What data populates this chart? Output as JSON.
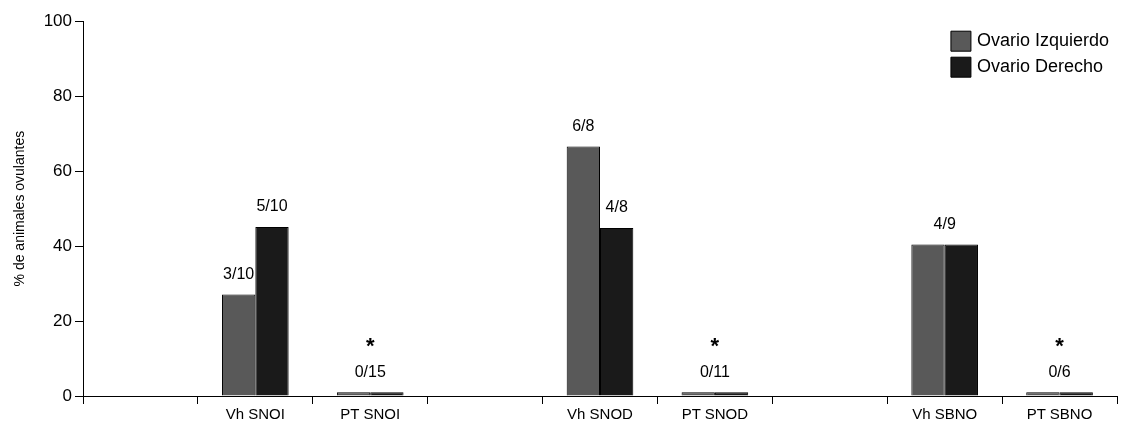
{
  "chart_data": {
    "type": "bar",
    "ylabel": "% de animales ovulantes",
    "categories": [
      null,
      "Vh SNOI",
      "PT SNOI",
      null,
      "Vh SNOD",
      "PT SNOD",
      null,
      "Vh SBNO",
      "PT SBNO"
    ],
    "series": [
      {
        "name": "Ovario Izquierdo",
        "color": "#595959",
        "values": [
          null,
          27.1,
          1,
          null,
          66.6,
          1,
          null,
          40.4,
          1
        ]
      },
      {
        "name": "Ovario Derecho",
        "color": "#1a1a1a",
        "values": [
          null,
          45.1,
          1,
          null,
          44.8,
          1,
          null,
          40.4,
          1
        ]
      }
    ],
    "annotations": [
      {
        "text": "3/10",
        "x": "Vh SNOI",
        "y": 27.1
      },
      {
        "text": "5/10",
        "x": "Vh SNOI",
        "y": 45.1
      },
      {
        "text": "0/15",
        "x": "PT SNOI",
        "y": 1
      },
      {
        "text": "*",
        "x": "PT SNOI",
        "y": 1
      },
      {
        "text": "6/8",
        "x": "Vh SNOD",
        "y": 66.6
      },
      {
        "text": "4/8",
        "x": "Vh SNOD",
        "y": 44.8
      },
      {
        "text": "0/11",
        "x": "PT SNOD",
        "y": 1
      },
      {
        "text": "*",
        "x": "PT SNOD",
        "y": 1
      },
      {
        "text": "4/9",
        "x": "Vh SBNO",
        "y": 40.4
      },
      {
        "text": "0/6",
        "x": "PT SBNO",
        "y": 1
      },
      {
        "text": "*",
        "x": "PT SBNO",
        "y": 1
      }
    ],
    "ylim": [
      0,
      100
    ],
    "yticks": [
      0,
      20,
      40,
      60,
      80,
      100
    ],
    "grid": false,
    "legend": "top right"
  }
}
